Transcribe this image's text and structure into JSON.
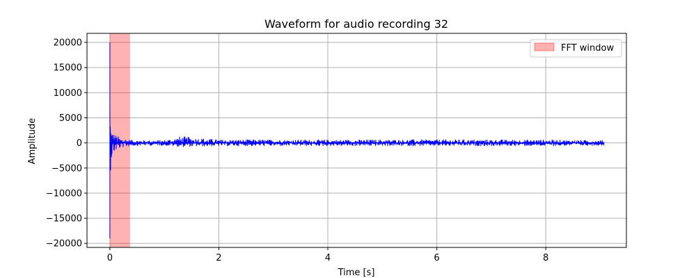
{
  "chart_data": {
    "type": "line",
    "title": "Waveform for audio recording 32",
    "xlabel": "Time [s]",
    "ylabel": "Amplitude",
    "xlim": [
      -0.42,
      9.48
    ],
    "ylim": [
      -20800,
      21800
    ],
    "x_ticks": [
      0,
      2,
      4,
      6,
      8
    ],
    "x_tick_labels": [
      "0",
      "2",
      "4",
      "6",
      "8"
    ],
    "y_ticks": [
      -20000,
      -15000,
      -10000,
      -5000,
      0,
      5000,
      10000,
      15000,
      20000
    ],
    "y_tick_labels": [
      "−20000",
      "−15000",
      "−10000",
      "−5000",
      "0",
      "5000",
      "10000",
      "15000",
      "20000"
    ],
    "grid": true,
    "legend_position": "top-right",
    "duration_s": 9.07,
    "series": [
      {
        "color": "#0000ff",
        "envelope_t": [
          0,
          0.003,
          0.01,
          0.03,
          0.06,
          0.1,
          0.15,
          0.2,
          0.3,
          0.4,
          0.6,
          1.0,
          1.3,
          2.0,
          4.0,
          6.0,
          8.0,
          9.07
        ],
        "envelope_upper": [
          20000,
          19500,
          4800,
          3000,
          2200,
          1700,
          1300,
          1000,
          800,
          600,
          500,
          500,
          1300,
          650,
          600,
          650,
          600,
          500
        ],
        "envelope_lower": [
          -19000,
          -18500,
          -5800,
          -3500,
          -2400,
          -1800,
          -1300,
          -1000,
          -800,
          -600,
          -500,
          -500,
          -800,
          -600,
          -600,
          -600,
          -600,
          -500
        ]
      }
    ],
    "shaded_regions": [
      {
        "x_start": 0.0,
        "x_end": 0.37,
        "color": "#ff0000",
        "alpha": 0.3,
        "label": "FFT window"
      }
    ],
    "legend": [
      {
        "label": "FFT window",
        "color": "#ff0000",
        "alpha": 0.3
      }
    ]
  }
}
